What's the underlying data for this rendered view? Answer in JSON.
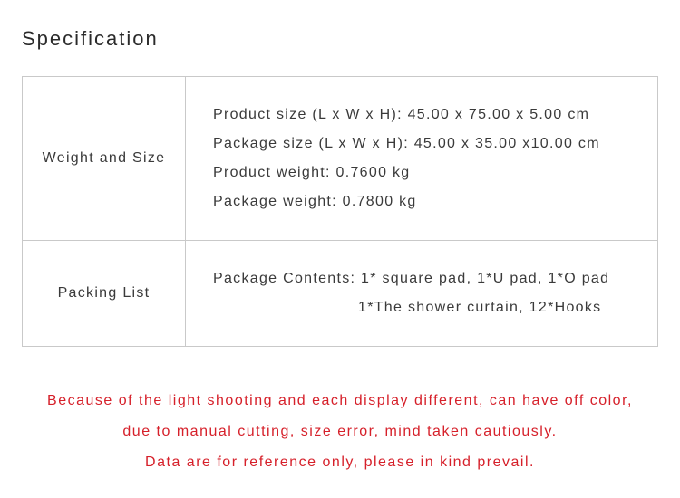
{
  "title": "Specification",
  "rows": [
    {
      "label": "Weight and Size",
      "lines": [
        "Product size (L x W x H): 45.00 x 75.00 x 5.00 cm",
        "Package size (L x W x H): 45.00 x 35.00 x10.00 cm",
        "Product weight: 0.7600 kg",
        "Package weight: 0.7800 kg"
      ]
    },
    {
      "label": "Packing List",
      "lines": [
        "Package Contents: 1* square pad, 1*U pad, 1*O pad",
        "1*The shower curtain, 12*Hooks"
      ],
      "indent_after_first": true
    }
  ],
  "notice": [
    "Because of the light shooting and each display different, can have off color,",
    "due to manual cutting, size error, mind taken cautiously.",
    "Data are for reference only, please in kind prevail."
  ],
  "colors": {
    "text": "#3a3a3a",
    "border": "#c9c9c9",
    "notice": "#d6202a",
    "background": "#ffffff"
  }
}
